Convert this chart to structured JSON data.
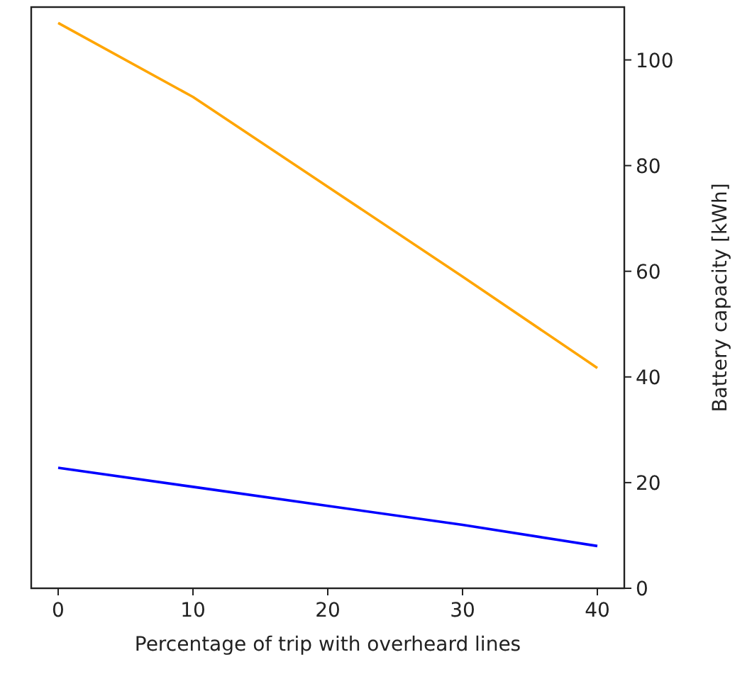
{
  "chart_data": {
    "type": "line",
    "xlabel": "Percentage of trip with overheard lines",
    "y2label": "Battery capacity [kWh]",
    "x": [
      0,
      10,
      20,
      30,
      40
    ],
    "xlim": [
      -2,
      42
    ],
    "xticks": [
      0,
      10,
      20,
      30,
      40
    ],
    "y2lim": [
      0,
      110
    ],
    "y2ticks": [
      0,
      20,
      40,
      60,
      80,
      100
    ],
    "grid": false,
    "series": [
      {
        "color": "#ffa500",
        "axis": "y2",
        "values": [
          107,
          93,
          76,
          59,
          41.7
        ]
      },
      {
        "color": "#0000ff",
        "axis": "y2",
        "values": [
          22.8,
          19.2,
          15.6,
          12,
          8
        ]
      }
    ]
  }
}
